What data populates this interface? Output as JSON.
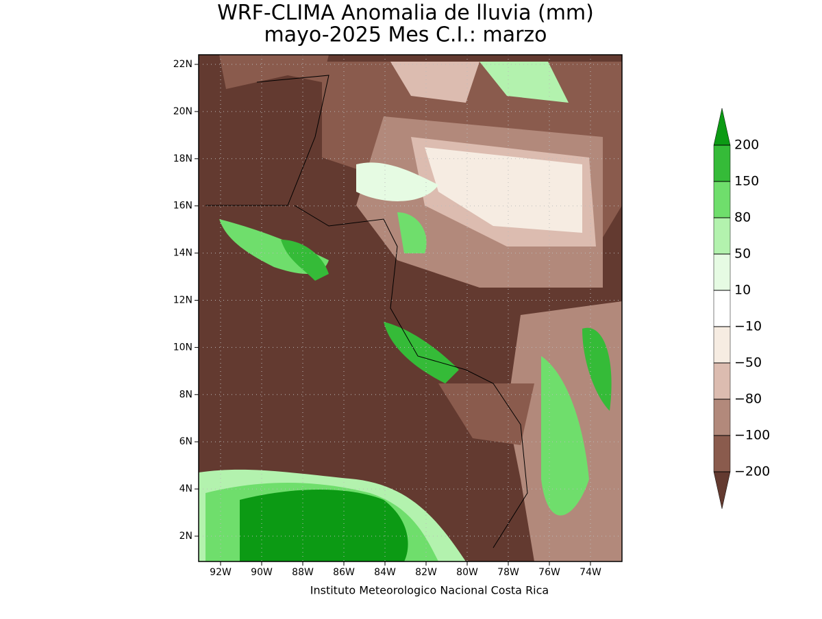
{
  "header": {
    "title": "WRF-CLIMA Anomalia de lluvia (mm)",
    "subtitle": "mayo-2025 Mes C.I.: marzo"
  },
  "map": {
    "lon_labels": [
      "92W",
      "90W",
      "88W",
      "86W",
      "84W",
      "82W",
      "80W",
      "78W",
      "76W",
      "74W"
    ],
    "lat_labels": [
      "22N",
      "20N",
      "18N",
      "16N",
      "14N",
      "12N",
      "10N",
      "8N",
      "6N",
      "4N",
      "2N"
    ]
  },
  "colorbar": {
    "labels": [
      "200",
      "150",
      "80",
      "50",
      "10",
      "−10",
      "−50",
      "−80",
      "−100",
      "−200"
    ],
    "colors": [
      "#0c9a14",
      "#35bb38",
      "#6fde6c",
      "#b3f2ae",
      "#e6fbe3",
      "#ffffff",
      "#f6ece2",
      "#dcbcb0",
      "#b2897b",
      "#8a5b4d",
      "#633a30"
    ]
  },
  "footer": "Instituto Meteorologico Nacional Costa Rica"
}
